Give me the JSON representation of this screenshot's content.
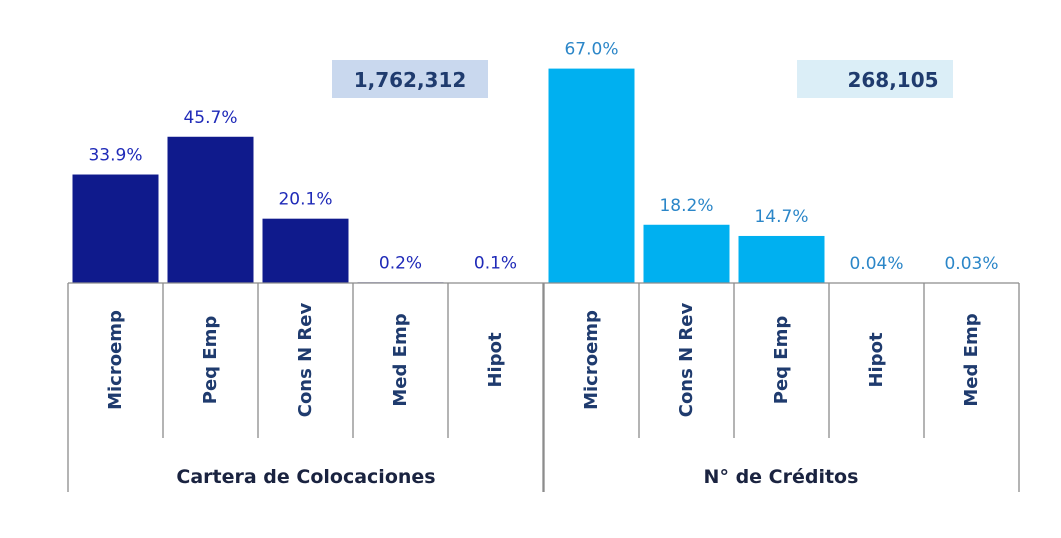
{
  "chart_data": [
    {
      "type": "bar",
      "group_label": "Cartera de Colocaciones",
      "total": "1,762,312",
      "color": "#0f1a8c",
      "label_color": "#1f2ab8",
      "total_box_color": "#c9d8ee",
      "categories": [
        "Microemp",
        "Peq Emp",
        "Cons N Rev",
        "Med Emp",
        "Hipot"
      ],
      "values": [
        33.9,
        45.7,
        20.1,
        0.2,
        0.1
      ],
      "value_labels": [
        "33.9%",
        "45.7%",
        "20.1%",
        "0.2%",
        "0.1%"
      ]
    },
    {
      "type": "bar",
      "group_label": "N° de Créditos",
      "total": "268,105",
      "color": "#00b0f0",
      "label_color": "#2b86c8",
      "total_box_color": "#dbeef7",
      "categories": [
        "Microemp",
        "Cons N Rev",
        "Peq Emp",
        "Hipot",
        "Med Emp"
      ],
      "values": [
        67.0,
        18.2,
        14.7,
        0.04,
        0.03
      ],
      "value_labels": [
        "67.0%",
        "18.2%",
        "14.7%",
        "0.04%",
        "0.03%"
      ]
    }
  ]
}
